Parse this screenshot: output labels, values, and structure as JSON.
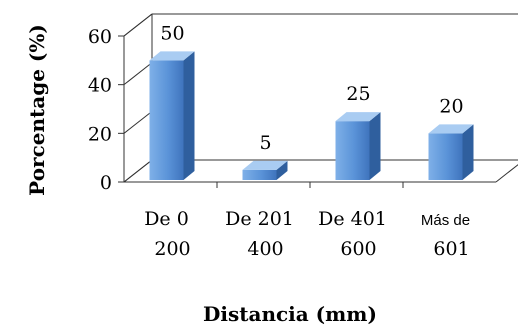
{
  "chart_data": {
    "type": "bar",
    "categories": [
      "De 0 a 200",
      "De 201 a 400",
      "De 401 a 600",
      "Más de 601"
    ],
    "category_lines": [
      [
        "De 0",
        "200"
      ],
      [
        "De 201",
        "400"
      ],
      [
        "De 401",
        "600"
      ],
      [
        "Más de",
        "601"
      ]
    ],
    "values": [
      50,
      5,
      25,
      20
    ],
    "data_labels": [
      "50",
      "5",
      "25",
      "20"
    ],
    "ylim": [
      0,
      60
    ],
    "yticks": [
      0,
      20,
      40,
      60
    ],
    "ytick_labels": [
      "0",
      "20",
      "40",
      "60"
    ],
    "xlabel": "Distancia (mm)",
    "ylabel": "Porcentage (%)",
    "style": "3d-column",
    "grid": false,
    "bar_color": "#5b9bd5"
  }
}
